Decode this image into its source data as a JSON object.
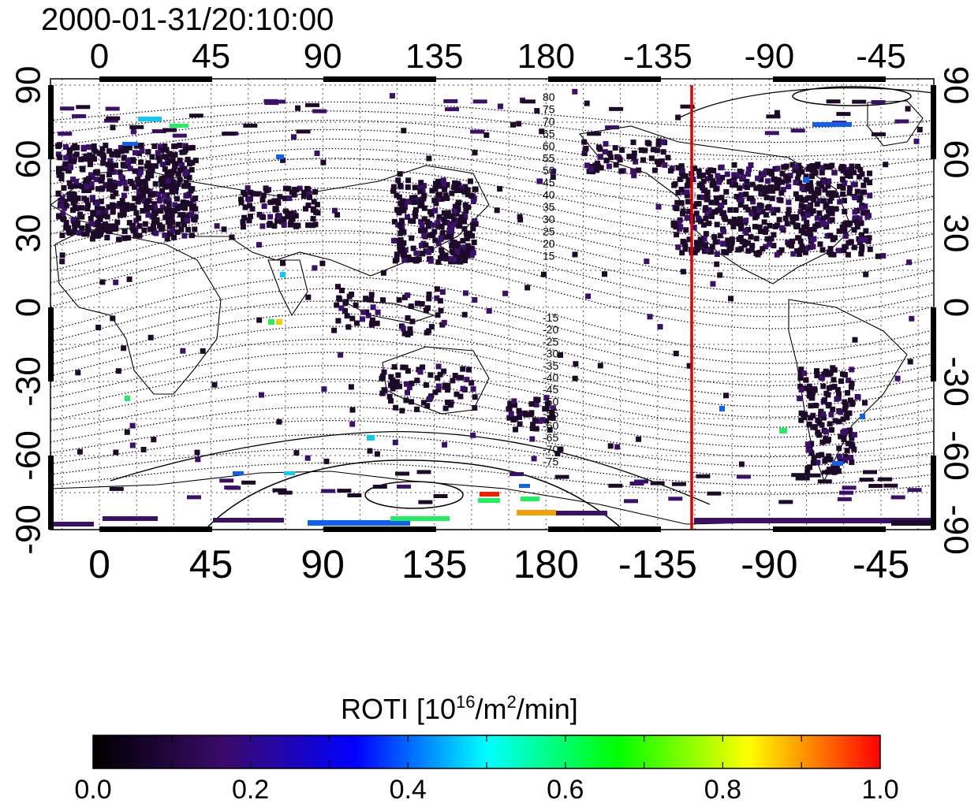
{
  "timestamp": "2000-01-31/20:10:00",
  "map": {
    "top_lon_ticks": [
      "0",
      "45",
      "90",
      "135",
      "180",
      "-135",
      "-90",
      "-45"
    ],
    "bottom_lon_ticks": [
      "0",
      "45",
      "90",
      "135",
      "180",
      "-135",
      "-90",
      "-45"
    ],
    "left_lat_ticks": [
      "90",
      "60",
      "30",
      "0",
      "-30",
      "-60",
      "-90"
    ],
    "right_lat_ticks": [
      "90",
      "60",
      "30",
      "0",
      "-30",
      "-60",
      "-90"
    ],
    "contour_labels_north": [
      "80",
      "75",
      "70",
      "65",
      "60",
      "55",
      "50",
      "45",
      "40",
      "35",
      "30",
      "25",
      "20",
      "15"
    ],
    "contour_labels_south": [
      "-15",
      "-20",
      "-25",
      "-30",
      "-35",
      "-40",
      "-45",
      "-50",
      "-55",
      "-60",
      "-65",
      "-70",
      "-75"
    ],
    "terminator_line_color": "#e00000",
    "terminator_lon_label": "",
    "data_colors": {
      "dark": "#1c0a28",
      "purple": "#3a1068",
      "blue": "#1060f0",
      "cyan": "#10c8f0",
      "green": "#20f060",
      "yellow": "#f0d000",
      "orange": "#f0a000",
      "red": "#f02000"
    }
  },
  "colorbar": {
    "title_main": "ROTI  [10",
    "title_sup1": "16",
    "title_mid": "/m",
    "title_sup2": "2",
    "title_end": "/min]",
    "tick_labels": [
      "0.0",
      "0.2",
      "0.4",
      "0.6",
      "0.8",
      "1.0"
    ],
    "range": [
      0.0,
      1.0
    ],
    "stops": [
      "#000000",
      "#3a0a6a",
      "#0000ff",
      "#00ffff",
      "#00ff00",
      "#ffff00",
      "#ff0000"
    ]
  }
}
